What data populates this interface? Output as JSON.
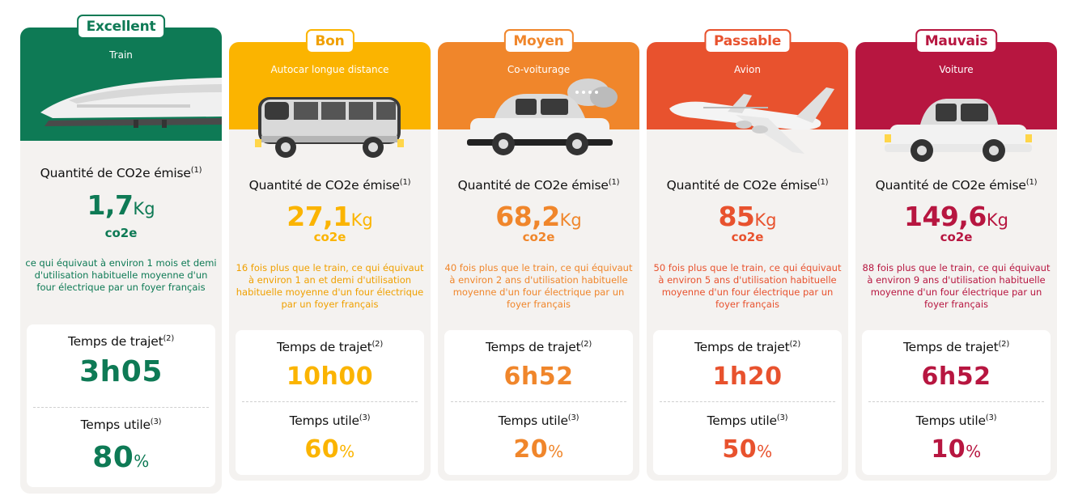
{
  "colors": {
    "excellent": "#0e7a55",
    "bon": "#fbb400",
    "moyen": "#f0862b",
    "passable": "#e8522e",
    "mauvais": "#b71640",
    "card_bg": "#f4f2f0"
  },
  "cards": [
    {
      "rating": "Excellent",
      "mode": "Train",
      "icon": "train-icon",
      "co2_label": "Quantité de CO2e émise",
      "co2_note": "(1)",
      "co2_value": "1,7",
      "co2_unit": "Kg",
      "co2_sub": "co2e",
      "description": "ce qui équivaut à environ 1 mois et demi d'utilisation habituelle moyenne d'un four électrique par un foyer français",
      "travel_label": "Temps de trajet",
      "travel_note": "(2)",
      "travel_value": "3h05",
      "useful_label": "Temps utile",
      "useful_note": "(3)",
      "useful_value": "80",
      "useful_unit": "%"
    },
    {
      "rating": "Bon",
      "mode": "Autocar longue distance",
      "icon": "coach-bus-icon",
      "co2_label": "Quantité de CO2e émise",
      "co2_note": "(1)",
      "co2_value": "27,1",
      "co2_unit": "Kg",
      "co2_sub": "co2e",
      "description": "16 fois plus que le train, ce qui équivaut à environ 1 an et demi d'utilisation habituelle moyenne d'un four électrique par un foyer français",
      "travel_label": "Temps de trajet",
      "travel_note": "(2)",
      "travel_value": "10h00",
      "useful_label": "Temps utile",
      "useful_note": "(3)",
      "useful_value": "60",
      "useful_unit": "%"
    },
    {
      "rating": "Moyen",
      "mode": "Co-voiturage",
      "icon": "carpool-car-icon",
      "co2_label": "Quantité de CO2e émise",
      "co2_note": "(1)",
      "co2_value": "68,2",
      "co2_unit": "Kg",
      "co2_sub": "co2e",
      "description": "40 fois plus que le train, ce qui équivaut à environ 2 ans d'utilisation habituelle moyenne d'un four électrique par un foyer français",
      "travel_label": "Temps de trajet",
      "travel_note": "(2)",
      "travel_value": "6h52",
      "useful_label": "Temps utile",
      "useful_note": "(3)",
      "useful_value": "20",
      "useful_unit": "%"
    },
    {
      "rating": "Passable",
      "mode": "Avion",
      "icon": "airplane-icon",
      "co2_label": "Quantité de CO2e émise",
      "co2_note": "(1)",
      "co2_value": "85",
      "co2_unit": "Kg",
      "co2_sub": "co2e",
      "description": "50 fois plus que le train, ce qui équivaut à environ 5 ans d'utilisation habituelle moyenne d'un four électrique par un foyer français",
      "travel_label": "Temps de trajet",
      "travel_note": "(2)",
      "travel_value": "1h20",
      "useful_label": "Temps utile",
      "useful_note": "(3)",
      "useful_value": "50",
      "useful_unit": "%"
    },
    {
      "rating": "Mauvais",
      "mode": "Voiture",
      "icon": "car-icon",
      "co2_label": "Quantité de CO2e émise",
      "co2_note": "(1)",
      "co2_value": "149,6",
      "co2_unit": "Kg",
      "co2_sub": "co2e",
      "description": "88 fois plus que le train, ce qui équivaut à environ 9 ans d'utilisation habituelle moyenne d'un four électrique par un foyer français",
      "travel_label": "Temps de trajet",
      "travel_note": "(2)",
      "travel_value": "6h52",
      "useful_label": "Temps utile",
      "useful_note": "(3)",
      "useful_value": "10",
      "useful_unit": "%"
    }
  ]
}
